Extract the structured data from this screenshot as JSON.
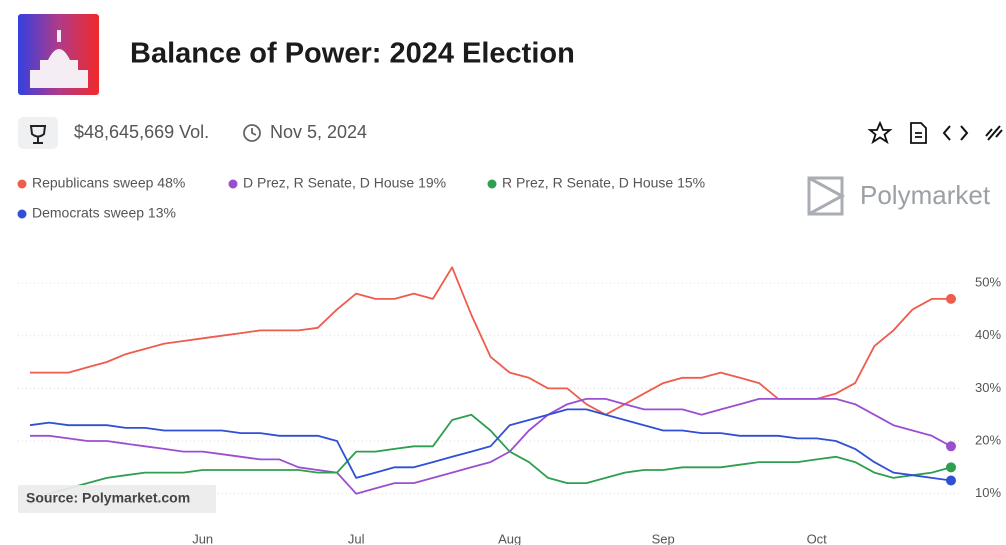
{
  "header": {
    "title": "Balance of Power: 2024 Election",
    "volume": "$48,645,669 Vol.",
    "date": "Nov 5, 2024"
  },
  "chart_data": {
    "type": "line",
    "watermark": "Polymarket",
    "source": "Source: Polymarket.com",
    "categories": [
      null,
      null,
      null,
      null,
      null,
      null,
      null,
      null,
      null,
      "Jun",
      null,
      null,
      null,
      null,
      null,
      null,
      null,
      "Jul",
      null,
      null,
      null,
      null,
      null,
      null,
      null,
      "Aug",
      null,
      null,
      null,
      null,
      null,
      null,
      null,
      "Sep",
      null,
      null,
      null,
      null,
      null,
      null,
      null,
      "Oct",
      null,
      null,
      null,
      null,
      null,
      null,
      null
    ],
    "series": [
      {
        "name": "Republicans sweep 48%",
        "color": "#ef5b4c",
        "values": [
          33,
          33,
          33,
          34,
          35,
          36.5,
          37.5,
          38.5,
          39,
          39.5,
          40,
          40.5,
          41,
          41,
          41,
          41.5,
          45,
          48,
          47,
          47,
          48,
          47,
          53,
          44,
          36,
          33,
          32,
          30,
          30,
          27,
          25,
          27,
          29,
          31,
          32,
          32,
          33,
          32,
          31,
          28,
          28,
          28,
          29,
          31,
          38,
          41,
          45,
          47,
          47
        ]
      },
      {
        "name": "D Prez, R Senate, D House 19%",
        "color": "#9b4fd0",
        "values": [
          21,
          21,
          20.5,
          20,
          20,
          19.5,
          19,
          18.5,
          18,
          18,
          17.5,
          17,
          16.5,
          16.5,
          15,
          14.5,
          14,
          10,
          11,
          12,
          12,
          13,
          14,
          15,
          16,
          18,
          22,
          25,
          27,
          28,
          28,
          27,
          26,
          26,
          26,
          25,
          26,
          27,
          28,
          28,
          28,
          28,
          28,
          27,
          25,
          23,
          22,
          21,
          19
        ]
      },
      {
        "name": "R Prez, R Senate, D House 15%",
        "color": "#2e9e4f",
        "values": [
          8,
          10,
          11,
          12,
          13,
          13.5,
          14,
          14,
          14,
          14.5,
          14.5,
          14.5,
          14.5,
          14.5,
          14.5,
          14,
          14,
          18,
          18,
          18.5,
          19,
          19,
          24,
          25,
          22,
          18,
          16,
          13,
          12,
          12,
          13,
          14,
          14.5,
          14.5,
          15,
          15,
          15,
          15.5,
          16,
          16,
          16,
          16.5,
          17,
          16,
          14,
          13,
          13.5,
          14,
          15
        ]
      },
      {
        "name": "Democrats sweep 13%",
        "color": "#2f4fd6",
        "values": [
          23,
          23.5,
          23,
          23,
          23,
          22.5,
          22.5,
          22,
          22,
          22,
          22,
          21.5,
          21.5,
          21,
          21,
          21,
          20,
          13,
          14,
          15,
          15,
          16,
          17,
          18,
          19,
          23,
          24,
          25,
          26,
          26,
          25,
          24,
          23,
          22,
          22,
          21.5,
          21.5,
          21,
          21,
          21,
          20.5,
          20.5,
          20,
          18.5,
          16,
          14,
          13.5,
          13,
          12.5
        ]
      }
    ],
    "ylim": [
      5,
      54
    ],
    "yticks": [
      {
        "value": 10,
        "label": "10%"
      },
      {
        "value": 20,
        "label": "20%"
      },
      {
        "value": 30,
        "label": "30%"
      },
      {
        "value": 40,
        "label": "40%"
      },
      {
        "value": 50,
        "label": "50%"
      }
    ],
    "grid": true
  }
}
